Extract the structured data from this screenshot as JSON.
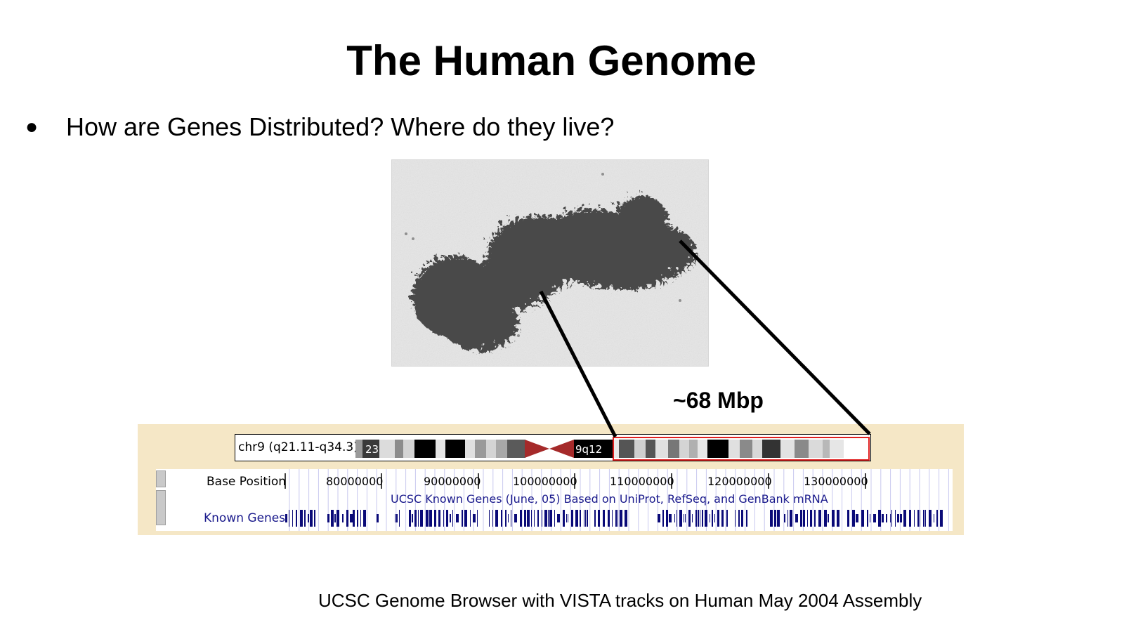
{
  "slide": {
    "title": "The Human Genome",
    "bullet": "How are Genes Distributed? Where do they live?",
    "zoom_label": "~68 Mbp",
    "footer": "UCSC Genome Browser with VISTA tracks on Human May 2004 Assembly"
  },
  "browser": {
    "ideogram_label": "chr9 (q21.11-q34.3)",
    "bands": [
      {
        "shade": "#9a9a9a"
      },
      {
        "shade": "#3a3a3a",
        "label": "23"
      },
      {
        "shade": "#dcdcdc"
      },
      {
        "shade": "#8c8c8c"
      },
      {
        "shade": "#d4d4d4"
      },
      {
        "shade": "#000000"
      },
      {
        "shade": "#e4e4e4"
      },
      {
        "shade": "#000000"
      },
      {
        "shade": "#e0e0e0"
      },
      {
        "shade": "#9a9a9a"
      },
      {
        "shade": "#d4d4d4"
      },
      {
        "shade": "#a8a8a8"
      },
      {
        "shade": "#5a5a5a"
      }
    ],
    "centromere_color": "#a52a2a",
    "q_bands": [
      {
        "shade": "#000000",
        "label": "9q12"
      },
      {
        "shade": "#e8e8e8"
      },
      {
        "shade": "#555555"
      },
      {
        "shade": "#cfcfcf"
      },
      {
        "shade": "#555555"
      },
      {
        "shade": "#e0e0e0"
      },
      {
        "shade": "#777777"
      },
      {
        "shade": "#d4d4d4"
      },
      {
        "shade": "#b0b0b0"
      },
      {
        "shade": "#e6e6e6"
      },
      {
        "shade": "#000000"
      },
      {
        "shade": "#e0e0e0"
      },
      {
        "shade": "#8a8a8a"
      },
      {
        "shade": "#d8d8d8"
      },
      {
        "shade": "#333333"
      },
      {
        "shade": "#e2e2e2"
      },
      {
        "shade": "#8a8a8a"
      },
      {
        "shade": "#dadada"
      },
      {
        "shade": "#b8b8b8"
      },
      {
        "shade": "#e6e6e6"
      }
    ],
    "highlight_color": "#e02020",
    "base_position_label": "Base Position",
    "ticks": [
      "80000000",
      "90000000",
      "100000000",
      "110000000",
      "120000000",
      "130000000"
    ],
    "known_genes_label": "Known Genes",
    "track_caption": "UCSC Known Genes (June, 05) Based on UniProt, RefSeq, and GenBank mRNA",
    "gene_color": "#0a0a78",
    "background_color": "#f5e7c6"
  }
}
